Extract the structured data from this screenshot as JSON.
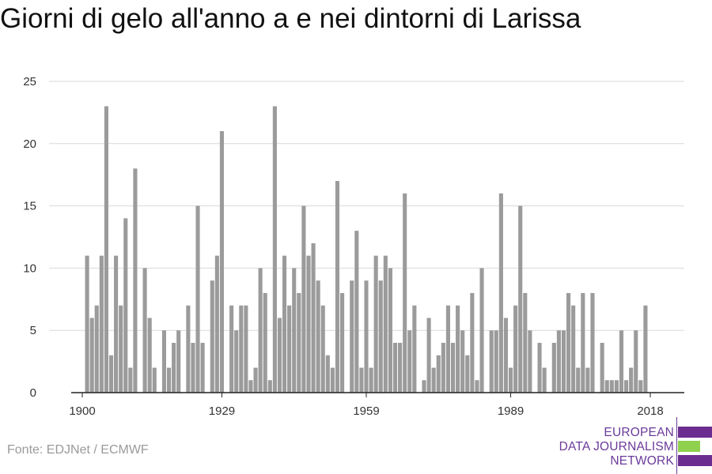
{
  "header": {
    "title": "Giorni di gelo all'anno a e nei dintorni di Larissa"
  },
  "footer": {
    "source": "Fonte: EDJNet / ECMWF"
  },
  "logo": {
    "lines": [
      "EUROPEAN",
      "DATA JOURNALISM",
      "NETWORK"
    ],
    "colors": {
      "purple": "#6b2d90",
      "green": "#8fd14f",
      "text": "#6b3a9a"
    }
  },
  "chart_data": {
    "type": "bar",
    "title": "Giorni di gelo all'anno a e nei dintorni di Larissa",
    "xlabel": "",
    "ylabel": "",
    "x_start": 1900,
    "x_end": 2018,
    "x_ticks": [
      1900,
      1929,
      1959,
      1989,
      2018
    ],
    "y_ticks": [
      0,
      5,
      10,
      15,
      20,
      25
    ],
    "ylim": [
      0,
      25
    ],
    "grid": "horizontal",
    "bar_color": "#9b9b9b",
    "categories": [
      1900,
      1901,
      1902,
      1903,
      1904,
      1905,
      1906,
      1907,
      1908,
      1909,
      1910,
      1911,
      1912,
      1913,
      1914,
      1915,
      1916,
      1917,
      1918,
      1919,
      1920,
      1921,
      1922,
      1923,
      1924,
      1925,
      1926,
      1927,
      1928,
      1929,
      1930,
      1931,
      1932,
      1933,
      1934,
      1935,
      1936,
      1937,
      1938,
      1939,
      1940,
      1941,
      1942,
      1943,
      1944,
      1945,
      1946,
      1947,
      1948,
      1949,
      1950,
      1951,
      1952,
      1953,
      1954,
      1955,
      1956,
      1957,
      1958,
      1959,
      1960,
      1961,
      1962,
      1963,
      1964,
      1965,
      1966,
      1967,
      1968,
      1969,
      1970,
      1971,
      1972,
      1973,
      1974,
      1975,
      1976,
      1977,
      1978,
      1979,
      1980,
      1981,
      1982,
      1983,
      1984,
      1985,
      1986,
      1987,
      1988,
      1989,
      1990,
      1991,
      1992,
      1993,
      1994,
      1995,
      1996,
      1997,
      1998,
      1999,
      2000,
      2001,
      2002,
      2003,
      2004,
      2005,
      2006,
      2007,
      2008,
      2009,
      2010,
      2011,
      2012,
      2013,
      2014,
      2015,
      2016,
      2017,
      2018
    ],
    "values": [
      0,
      11,
      6,
      7,
      11,
      23,
      3,
      11,
      7,
      14,
      2,
      18,
      0,
      10,
      6,
      2,
      0,
      5,
      2,
      4,
      5,
      0,
      7,
      4,
      15,
      4,
      0,
      9,
      11,
      21,
      0,
      7,
      5,
      7,
      7,
      1,
      2,
      10,
      8,
      1,
      23,
      6,
      11,
      7,
      10,
      8,
      15,
      11,
      12,
      9,
      7,
      3,
      2,
      17,
      8,
      0,
      9,
      13,
      2,
      9,
      2,
      11,
      9,
      11,
      10,
      4,
      4,
      16,
      5,
      7,
      0,
      1,
      6,
      2,
      3,
      4,
      7,
      4,
      7,
      5,
      3,
      8,
      1,
      10,
      0,
      5,
      5,
      16,
      6,
      2,
      7,
      15,
      8,
      5,
      0,
      4,
      2,
      0,
      4,
      5,
      5,
      8,
      7,
      2,
      8,
      2,
      8,
      0,
      4,
      1,
      1,
      1,
      5,
      1,
      2,
      5,
      1,
      7,
      0
    ]
  }
}
